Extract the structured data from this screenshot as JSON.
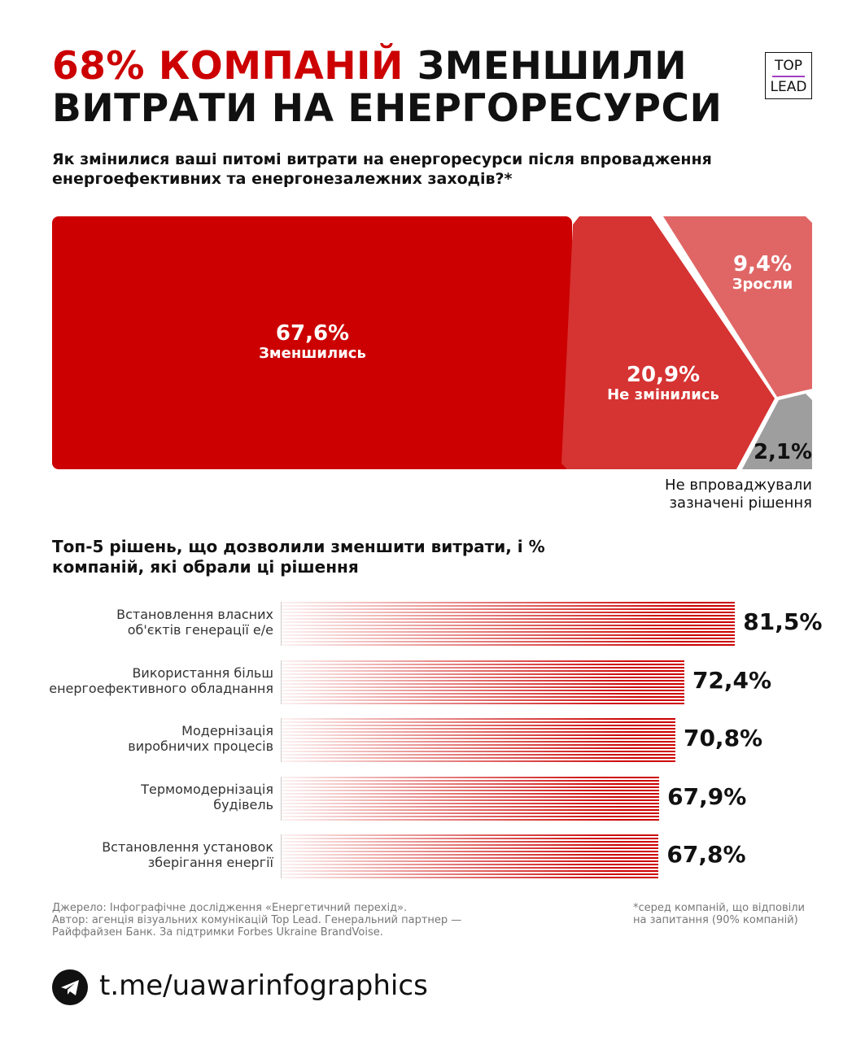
{
  "header": {
    "title_red": "68% КОМПАНІЙ",
    "title_black1": " ЗМЕНШИЛИ",
    "title_black2": "ВИТРАТИ НА ЕНЕРГОРЕСУРСИ",
    "logo_top": "TOP",
    "logo_bottom": "LEAD"
  },
  "chart_data": [
    {
      "type": "treemap",
      "title": "Як змінилися ваші питомі витрати на енергоресурси після впровадження енергоефективних та енергонезалежних заходів?*",
      "slices": [
        {
          "label": "Зменшились",
          "value": 67.6,
          "display": "67,6%",
          "color": "#cc0000"
        },
        {
          "label": "Не змінились",
          "value": 20.9,
          "display": "20,9%",
          "color": "#d63333"
        },
        {
          "label": "Зросли",
          "value": 9.4,
          "display": "9,4%",
          "color": "#e06666"
        },
        {
          "label": "Не впроваджували зазначені рішення",
          "value": 2.1,
          "display": "2,1%",
          "color": "#9e9e9e"
        }
      ]
    },
    {
      "type": "bar",
      "orientation": "horizontal",
      "title": "Топ-5 рішень, що дозволили зменшити витрати, і % компаній, які обрали ці рішення",
      "categories": [
        "Встановлення власних об'єктів генерації е/е",
        "Використання більш енергоефективного обладнання",
        "Модернізація виробничих процесів",
        "Термомодернізація будівель",
        "Встановлення установок зберігання енергії"
      ],
      "cat_lines": [
        [
          "Встановлення власних",
          "об'єктів генерації е/е"
        ],
        [
          "Використання більш",
          "енергоефективного обладнання"
        ],
        [
          "Модернізація",
          "виробничих процесів"
        ],
        [
          "Термомодернізація",
          "будівель"
        ],
        [
          "Встановлення установок",
          "зберігання енергії"
        ]
      ],
      "values": [
        81.5,
        72.4,
        70.8,
        67.9,
        67.8
      ],
      "labels": [
        "81,5%",
        "72,4%",
        "70,8%",
        "67,9%",
        "67,8%"
      ],
      "color": "#cc0000"
    }
  ],
  "treemap_note": [
    "Не впроваджували",
    "зазначені рішення"
  ],
  "footer": {
    "source": [
      "Джерело: Інфографічне дослідження «Енергетичний перехід».",
      "Автор: агенція візуальних комунікацій Top Lead. Генеральний партнер —",
      "Райффайзен Банк. За підтримки Forbes Ukraine BrandVoise."
    ],
    "footnote": [
      "*серед компаній, що відповіли",
      "на запитання (90% компаній)"
    ],
    "link": "t.me/uawarinfographics",
    "icon": "telegram-icon"
  }
}
